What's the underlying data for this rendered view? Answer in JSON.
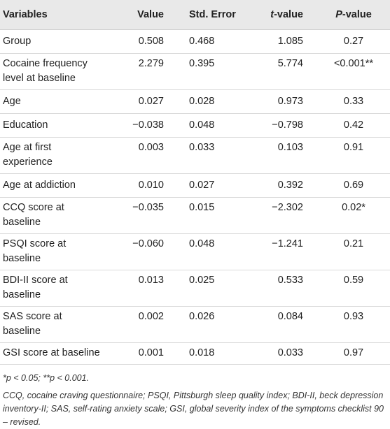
{
  "table": {
    "headers": {
      "variables": "Variables",
      "value": "Value",
      "std_error": "Std. Error",
      "t_value_italic": "t",
      "t_value_rest": "-value",
      "p_value_italic": "P",
      "p_value_rest": "-value"
    },
    "rows": [
      {
        "variable": "Group",
        "value": "0.508",
        "std_error": "0.468",
        "t_value": "1.085",
        "p_value": "0.27"
      },
      {
        "variable": "Cocaine frequency level at baseline",
        "value": "2.279",
        "std_error": "0.395",
        "t_value": "5.774",
        "p_value": "<0.001**"
      },
      {
        "variable": "Age",
        "value": "0.027",
        "std_error": "0.028",
        "t_value": "0.973",
        "p_value": "0.33"
      },
      {
        "variable": "Education",
        "value": "−0.038",
        "std_error": "0.048",
        "t_value": "−0.798",
        "p_value": "0.42"
      },
      {
        "variable": "Age at first experience",
        "value": "0.003",
        "std_error": "0.033",
        "t_value": "0.103",
        "p_value": "0.91"
      },
      {
        "variable": "Age at addiction",
        "value": "0.010",
        "std_error": "0.027",
        "t_value": "0.392",
        "p_value": "0.69"
      },
      {
        "variable": "CCQ score at baseline",
        "value": "−0.035",
        "std_error": "0.015",
        "t_value": "−2.302",
        "p_value": "0.02*"
      },
      {
        "variable": "PSQI score at baseline",
        "value": "−0.060",
        "std_error": "0.048",
        "t_value": "−1.241",
        "p_value": "0.21"
      },
      {
        "variable": "BDI-II score at baseline",
        "value": "0.013",
        "std_error": "0.025",
        "t_value": "0.533",
        "p_value": "0.59"
      },
      {
        "variable": "SAS score at baseline",
        "value": "0.002",
        "std_error": "0.026",
        "t_value": "0.084",
        "p_value": "0.93"
      },
      {
        "variable": "GSI score at baseline",
        "value": "0.001",
        "std_error": "0.018",
        "t_value": "0.033",
        "p_value": "0.97"
      }
    ]
  },
  "footnotes": {
    "significance": "*p < 0.05; **p < 0.001.",
    "abbreviations": "CCQ, cocaine craving questionnaire; PSQI, Pittsburgh sleep quality index; BDI-II, beck depression inventory-II; SAS, self-rating anxiety scale; GSI, global severity index of the symptoms checklist 90 – revised."
  }
}
